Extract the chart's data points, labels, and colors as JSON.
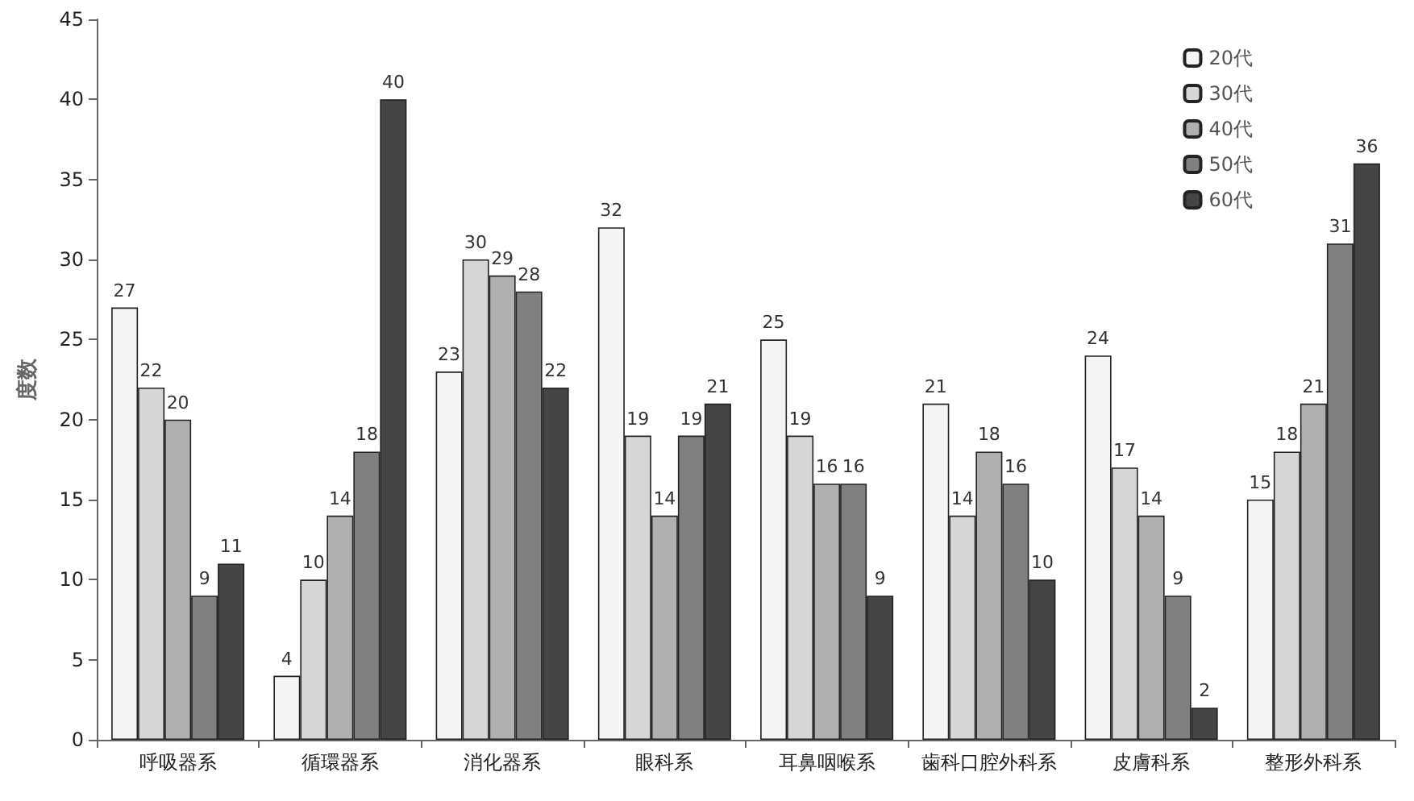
{
  "chart_data": {
    "type": "bar",
    "ylabel": "度数",
    "categories": [
      "呼吸器系",
      "循環器系",
      "消化器系",
      "眼科系",
      "耳鼻咽喉系",
      "歯科口腔外科系",
      "皮膚科系",
      "整形外科系"
    ],
    "series": [
      {
        "name": "20代",
        "color": "#f4f4f4",
        "values": [
          27,
          4,
          23,
          32,
          25,
          21,
          24,
          15
        ]
      },
      {
        "name": "30代",
        "color": "#d6d6d6",
        "values": [
          22,
          10,
          30,
          19,
          19,
          14,
          17,
          18
        ]
      },
      {
        "name": "40代",
        "color": "#b0b0b0",
        "values": [
          20,
          14,
          29,
          14,
          16,
          18,
          14,
          21
        ]
      },
      {
        "name": "50代",
        "color": "#808080",
        "values": [
          9,
          18,
          28,
          19,
          16,
          16,
          9,
          31
        ]
      },
      {
        "name": "60代",
        "color": "#454545",
        "values": [
          11,
          40,
          22,
          21,
          9,
          10,
          2,
          36
        ]
      }
    ],
    "ylim": [
      0,
      45
    ],
    "yticks": [
      0,
      5,
      10,
      15,
      20,
      25,
      30,
      35,
      40,
      45
    ],
    "grid": false,
    "legend": "top right",
    "data_labels": true
  }
}
